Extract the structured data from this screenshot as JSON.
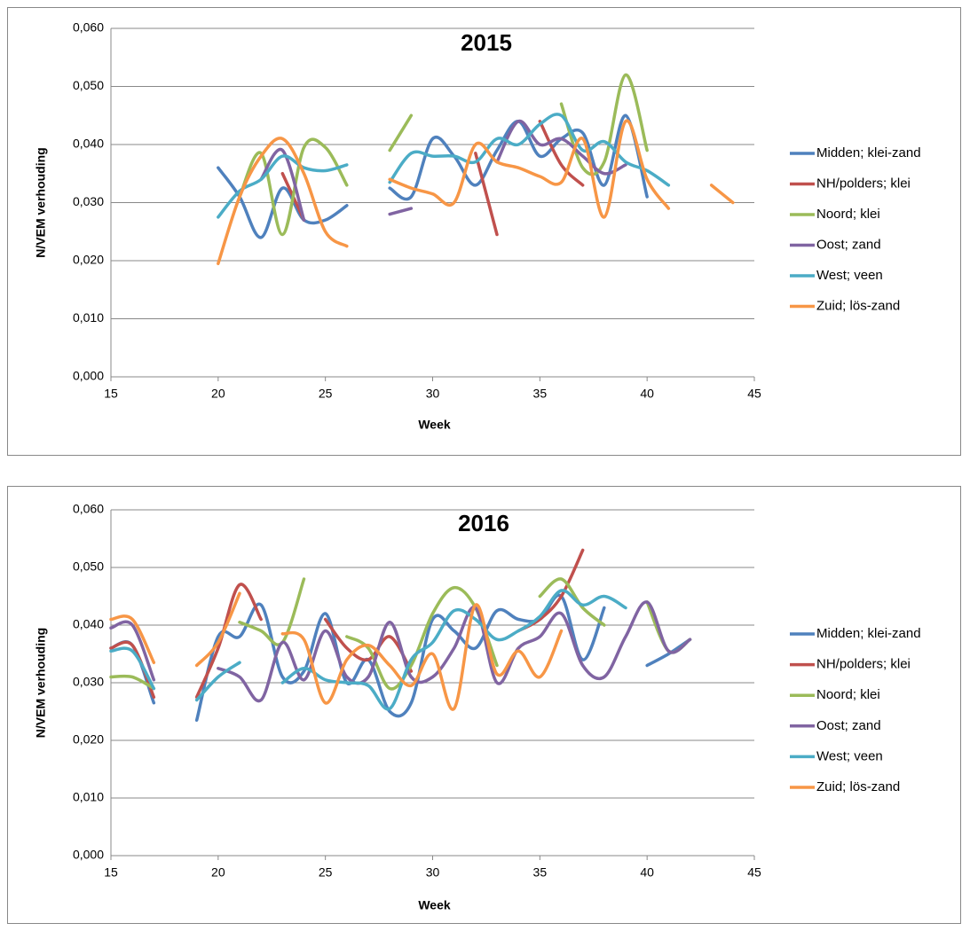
{
  "chart_data": [
    {
      "type": "line",
      "title": "2015",
      "x_label": "Week",
      "y_label": "N/VEM verhouding",
      "x": [
        20,
        21,
        22,
        23,
        24,
        25,
        26,
        27,
        28,
        29,
        30,
        31,
        32,
        33,
        34,
        35,
        36,
        37,
        38,
        39,
        40,
        41,
        42,
        43,
        44
      ],
      "xlim": [
        15,
        45
      ],
      "xticks": [
        15,
        20,
        25,
        30,
        35,
        40,
        45
      ],
      "ylim": [
        0,
        0.06
      ],
      "yticks": [
        {
          "value": 0,
          "label": "0,000"
        },
        {
          "value": 0.01,
          "label": "0,010"
        },
        {
          "value": 0.02,
          "label": "0,020"
        },
        {
          "value": 0.03,
          "label": "0,030"
        },
        {
          "value": 0.04,
          "label": "0,040"
        },
        {
          "value": 0.05,
          "label": "0,050"
        },
        {
          "value": 0.06,
          "label": "0,060"
        }
      ],
      "grid": true,
      "legend": "right",
      "smooth": true,
      "series": [
        {
          "name": "Midden; klei-zand",
          "color": "#4F81BD",
          "values": [
            0.036,
            0.031,
            0.024,
            0.0325,
            0.027,
            0.027,
            0.0295,
            null,
            0.0325,
            0.031,
            0.041,
            0.038,
            0.033,
            0.039,
            0.044,
            0.038,
            0.041,
            0.042,
            0.033,
            0.045,
            0.031,
            null,
            null,
            null,
            null
          ]
        },
        {
          "name": "NH/polders; klei",
          "color": "#C0504D",
          "values": [
            null,
            null,
            null,
            0.035,
            0.027,
            null,
            null,
            null,
            null,
            null,
            null,
            null,
            0.0385,
            0.0245,
            null,
            0.044,
            0.0365,
            0.033,
            null,
            null,
            null,
            null,
            null,
            null,
            null
          ]
        },
        {
          "name": "Noord; klei",
          "color": "#9BBB59",
          "values": [
            null,
            0.031,
            0.0385,
            0.0245,
            0.0395,
            0.0395,
            0.033,
            null,
            0.039,
            0.045,
            null,
            null,
            null,
            null,
            null,
            null,
            0.047,
            0.036,
            0.037,
            0.052,
            0.039,
            null,
            null,
            null,
            null
          ]
        },
        {
          "name": "Oost; zand",
          "color": "#8064A2",
          "values": [
            null,
            null,
            0.034,
            0.039,
            0.027,
            null,
            null,
            null,
            0.028,
            0.029,
            null,
            null,
            null,
            0.037,
            0.044,
            0.04,
            0.041,
            0.038,
            0.035,
            0.0365,
            null,
            null,
            null,
            null,
            null
          ]
        },
        {
          "name": "West; veen",
          "color": "#4BACC6",
          "values": [
            0.0275,
            0.032,
            0.034,
            0.038,
            0.036,
            0.0355,
            0.0365,
            null,
            0.0335,
            0.0385,
            0.038,
            0.038,
            0.037,
            0.041,
            0.04,
            0.0435,
            0.045,
            0.039,
            0.0405,
            0.037,
            0.0355,
            0.033,
            null,
            null,
            null
          ]
        },
        {
          "name": "Zuid; lös-zand",
          "color": "#F79646",
          "values": [
            0.0195,
            0.031,
            0.038,
            0.041,
            0.035,
            0.025,
            0.0225,
            null,
            0.034,
            0.0325,
            0.0315,
            0.03,
            0.04,
            0.037,
            0.036,
            0.0345,
            0.0335,
            0.041,
            0.0275,
            0.044,
            0.034,
            0.029,
            null,
            0.033,
            0.03
          ]
        }
      ]
    },
    {
      "type": "line",
      "title": "2016",
      "x_label": "Week",
      "y_label": "N/VEM verhouding",
      "x": [
        15,
        16,
        17,
        18,
        19,
        20,
        21,
        22,
        23,
        24,
        25,
        26,
        27,
        28,
        29,
        30,
        31,
        32,
        33,
        34,
        35,
        36,
        37,
        38,
        39,
        40,
        41,
        42
      ],
      "xlim": [
        15,
        45
      ],
      "xticks": [
        15,
        20,
        25,
        30,
        35,
        40,
        45
      ],
      "ylim": [
        0,
        0.06
      ],
      "yticks": [
        {
          "value": 0,
          "label": "0,000"
        },
        {
          "value": 0.01,
          "label": "0,010"
        },
        {
          "value": 0.02,
          "label": "0,020"
        },
        {
          "value": 0.03,
          "label": "0,030"
        },
        {
          "value": 0.04,
          "label": "0,040"
        },
        {
          "value": 0.05,
          "label": "0,050"
        },
        {
          "value": 0.06,
          "label": "0,060"
        }
      ],
      "grid": true,
      "legend": "right",
      "smooth": true,
      "series": [
        {
          "name": "Midden; klei-zand",
          "color": "#4F81BD",
          "values": [
            0.036,
            0.0365,
            0.0265,
            null,
            0.0235,
            0.038,
            0.038,
            0.0435,
            0.031,
            0.032,
            0.042,
            0.03,
            0.034,
            0.025,
            0.0265,
            0.041,
            0.039,
            0.036,
            0.0425,
            0.041,
            0.041,
            0.045,
            0.034,
            0.043,
            null,
            0.033,
            0.035,
            0.0375
          ]
        },
        {
          "name": "NH/polders; klei",
          "color": "#C0504D",
          "values": [
            0.036,
            0.0365,
            0.0275,
            null,
            0.0275,
            0.036,
            0.047,
            0.041,
            null,
            null,
            0.041,
            0.036,
            0.034,
            0.038,
            0.032,
            null,
            null,
            null,
            null,
            0.039,
            0.041,
            0.045,
            0.053,
            null,
            null,
            null,
            null,
            null
          ]
        },
        {
          "name": "Noord; klei",
          "color": "#9BBB59",
          "values": [
            0.031,
            0.031,
            0.029,
            null,
            null,
            null,
            0.0405,
            0.039,
            0.037,
            0.048,
            null,
            0.038,
            0.036,
            0.029,
            0.033,
            0.042,
            0.0465,
            0.043,
            0.033,
            null,
            0.045,
            0.048,
            0.043,
            0.04,
            null,
            0.044,
            0.0355,
            0.0375
          ]
        },
        {
          "name": "Oost; zand",
          "color": "#8064A2",
          "values": [
            0.0395,
            0.04,
            0.0305,
            null,
            null,
            0.0325,
            0.031,
            0.027,
            0.037,
            0.0305,
            0.039,
            0.031,
            0.031,
            0.0405,
            0.031,
            0.031,
            0.036,
            0.043,
            0.03,
            0.036,
            0.038,
            0.042,
            0.033,
            0.031,
            0.038,
            0.044,
            0.0355,
            0.0375
          ]
        },
        {
          "name": "West; veen",
          "color": "#4BACC6",
          "values": [
            0.0355,
            0.0355,
            0.029,
            null,
            0.027,
            0.031,
            0.0335,
            null,
            0.03,
            0.0325,
            0.0305,
            0.03,
            0.0295,
            0.0255,
            0.034,
            0.037,
            0.0425,
            0.041,
            0.0375,
            0.039,
            0.0415,
            0.046,
            0.0435,
            0.045,
            0.043,
            null,
            null,
            null
          ]
        },
        {
          "name": "Zuid; lös-zand",
          "color": "#F79646",
          "values": [
            0.041,
            0.041,
            0.0335,
            null,
            0.033,
            0.037,
            0.0455,
            null,
            0.0385,
            0.0375,
            0.0265,
            0.034,
            0.0365,
            0.033,
            0.0295,
            0.035,
            0.0255,
            0.0435,
            0.0315,
            0.0355,
            0.031,
            0.039,
            null,
            null,
            null,
            null,
            null,
            null
          ]
        }
      ]
    }
  ]
}
